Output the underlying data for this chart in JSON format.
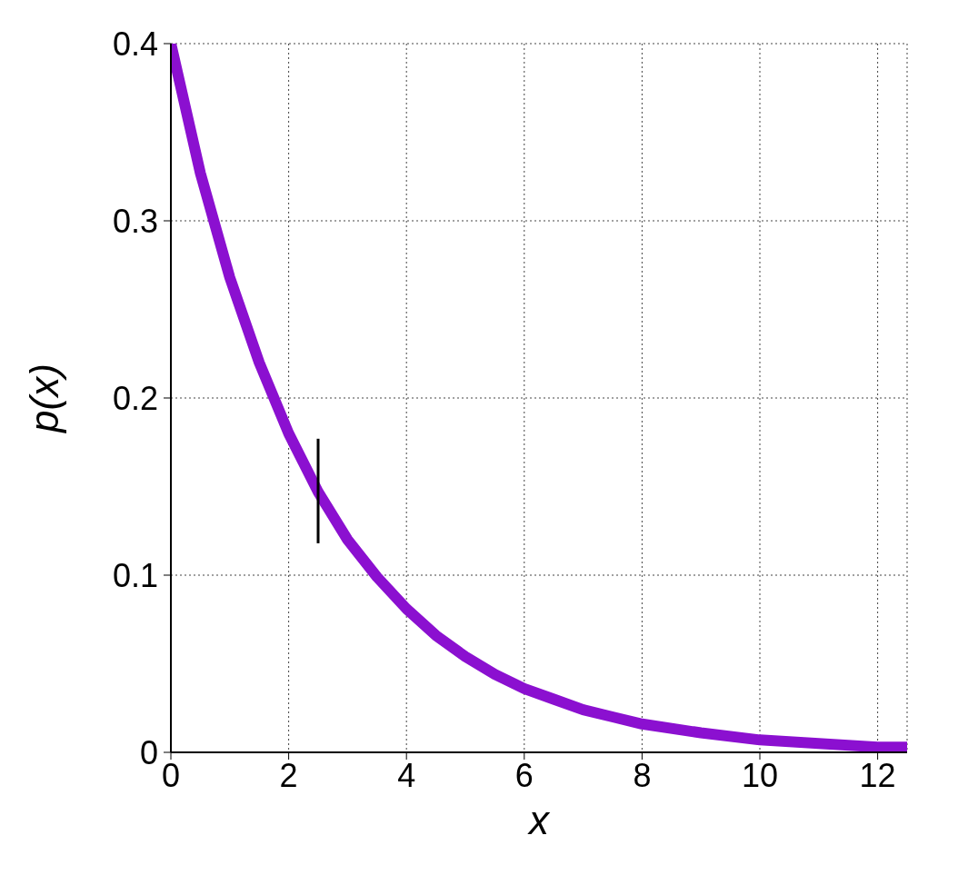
{
  "chart_data": {
    "type": "line",
    "xlabel": "x",
    "ylabel": "p(x)",
    "xlim": [
      0,
      12.5
    ],
    "ylim": [
      0,
      0.4
    ],
    "xticks": [
      0,
      2,
      4,
      6,
      8,
      10,
      12
    ],
    "yticks": [
      0,
      0.1,
      0.2,
      0.3,
      0.4
    ],
    "grid": true,
    "line_style": "solid",
    "series": [
      {
        "color": "#8b10d0",
        "x": [
          0,
          0.5,
          1,
          1.5,
          2,
          2.5,
          3,
          3.5,
          4,
          4.5,
          5,
          5.5,
          6,
          6.5,
          7,
          7.5,
          8,
          9,
          10,
          11,
          12,
          12.5
        ],
        "values": [
          0.4,
          0.327,
          0.268,
          0.22,
          0.18,
          0.147,
          0.12,
          0.099,
          0.081,
          0.066,
          0.054,
          0.044,
          0.036,
          0.03,
          0.024,
          0.02,
          0.016,
          0.011,
          0.007,
          0.005,
          0.003,
          0.003
        ]
      },
      {
        "color": "#000000",
        "x": [
          2.5,
          2.5
        ],
        "values": [
          0.118,
          0.177
        ]
      }
    ]
  }
}
